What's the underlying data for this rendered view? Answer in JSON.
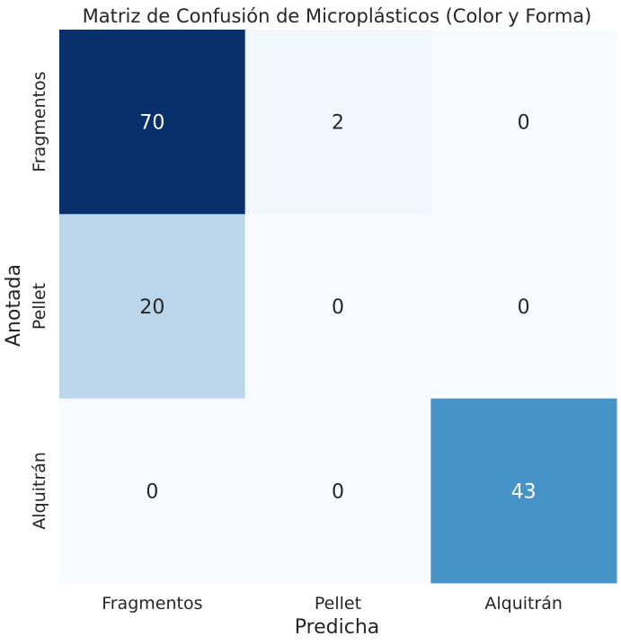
{
  "chart_data": {
    "type": "heatmap",
    "title": "Matriz de Confusión de Microplásticos (Color y Forma)",
    "xlabel": "Predicha",
    "ylabel": "Anotada",
    "x_categories": [
      "Fragmentos",
      "Pellet",
      "Alquitrán"
    ],
    "y_categories": [
      "Fragmentos",
      "Pellet",
      "Alquitrán"
    ],
    "values": [
      [
        70,
        2,
        0
      ],
      [
        20,
        0,
        0
      ],
      [
        0,
        0,
        43
      ]
    ],
    "colormap": "Blues",
    "colorbar": false,
    "grid": false,
    "annotations": true,
    "value_range": [
      0,
      70
    ]
  }
}
